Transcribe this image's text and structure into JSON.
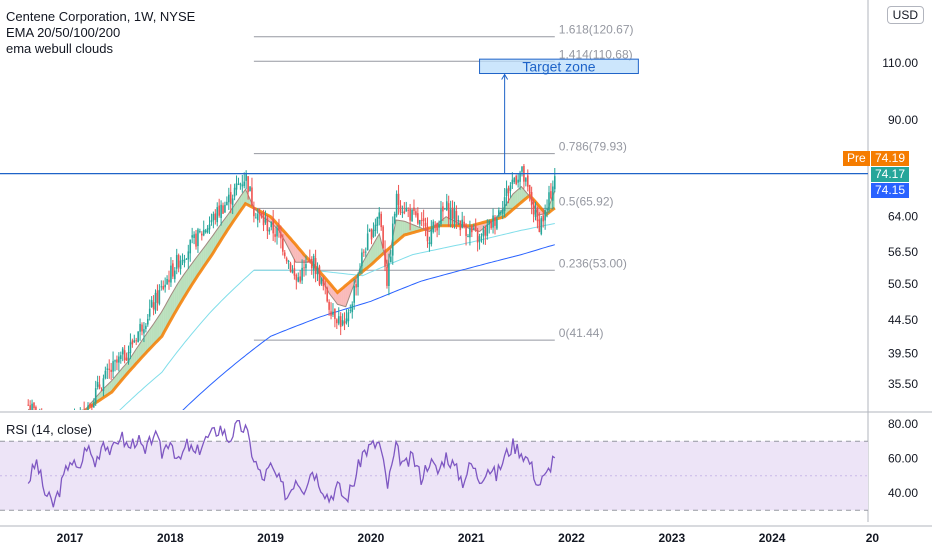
{
  "header": {
    "title": "Centene Corporation, 1W, NYSE",
    "indicator_1": "EMA 20/50/100/200",
    "indicator_2": "ema webull clouds",
    "currency": "USD"
  },
  "rsi_panel": {
    "title": "RSI (14, close)"
  },
  "price_tags": [
    {
      "label": "Pre",
      "value": "74.19",
      "color": "#f57c00"
    },
    {
      "label": "",
      "value": "74.17",
      "color": "#26a69a"
    },
    {
      "label": "",
      "value": "74.15",
      "color": "#2962ff"
    }
  ],
  "chart_data": [
    {
      "type": "candlestick",
      "title": "Centene Corporation, 1W, NYSE",
      "y_scale": "log",
      "x_ticks": [
        "2017",
        "2018",
        "2019",
        "2020",
        "2021",
        "2022",
        "2023",
        "2024",
        "20"
      ],
      "y_ticks": [
        "110.00",
        "90.00",
        "64.00",
        "56.50",
        "50.50",
        "44.50",
        "39.50",
        "35.50"
      ],
      "y_tick_values": [
        110,
        90,
        64,
        56.5,
        50.5,
        44.5,
        39.5,
        35.5
      ],
      "ylim": [
        30.5,
        130
      ],
      "price_path": [
        [
          "2016-08",
          33.0
        ],
        [
          "2016-11",
          29.0
        ],
        [
          "2017-02",
          31.0
        ],
        [
          "2017-05",
          36.0
        ],
        [
          "2017-08",
          40.0
        ],
        [
          "2017-11",
          47.0
        ],
        [
          "2018-02",
          55.0
        ],
        [
          "2018-05",
          61.0
        ],
        [
          "2018-08",
          68.0
        ],
        [
          "2018-10",
          74.0
        ],
        [
          "2018-11",
          66.0
        ],
        [
          "2018-12",
          63.0
        ],
        [
          "2019-02",
          60.0
        ],
        [
          "2019-04",
          51.0
        ],
        [
          "2019-06",
          55.0
        ],
        [
          "2019-08",
          47.0
        ],
        [
          "2019-10",
          43.0
        ],
        [
          "2019-12",
          56.0
        ],
        [
          "2020-02",
          65.0
        ],
        [
          "2020-03",
          50.0
        ],
        [
          "2020-04",
          68.0
        ],
        [
          "2020-06",
          64.0
        ],
        [
          "2020-08",
          60.0
        ],
        [
          "2020-10",
          66.0
        ],
        [
          "2020-12",
          62.0
        ],
        [
          "2021-02",
          59.0
        ],
        [
          "2021-04",
          64.0
        ],
        [
          "2021-06",
          73.0
        ],
        [
          "2021-07",
          75.0
        ],
        [
          "2021-09",
          62.0
        ],
        [
          "2021-10",
          65.0
        ],
        [
          "2021-11",
          74.17
        ]
      ],
      "ema_20_50": [
        [
          "2016-08",
          32.0
        ],
        [
          "2016-12",
          30.5
        ],
        [
          "2017-06",
          34.5
        ],
        [
          "2017-12",
          42.0
        ],
        [
          "2018-06",
          56.0
        ],
        [
          "2018-10",
          67.0
        ],
        [
          "2019-01",
          64.0
        ],
        [
          "2019-05",
          56.0
        ],
        [
          "2019-09",
          49.0
        ],
        [
          "2020-01",
          54.0
        ],
        [
          "2020-05",
          60.0
        ],
        [
          "2020-09",
          62.0
        ],
        [
          "2021-01",
          62.0
        ],
        [
          "2021-05",
          64.0
        ],
        [
          "2021-08",
          69.0
        ],
        [
          "2021-10",
          64.5
        ],
        [
          "2021-11",
          66.0
        ]
      ],
      "ema_100": [
        [
          "2016-08",
          29.0
        ],
        [
          "2017-06",
          31.5
        ],
        [
          "2017-12",
          37.0
        ],
        [
          "2018-06",
          46.0
        ],
        [
          "2018-11",
          53.0
        ],
        [
          "2019-06",
          53.0
        ],
        [
          "2019-12",
          52.0
        ],
        [
          "2020-06",
          56.0
        ],
        [
          "2021-01",
          58.5
        ],
        [
          "2021-07",
          61.0
        ],
        [
          "2021-11",
          62.5
        ]
      ],
      "ema_200": [
        [
          "2017-06",
          26.0
        ],
        [
          "2018-01",
          31.0
        ],
        [
          "2018-07",
          36.5
        ],
        [
          "2019-01",
          42.0
        ],
        [
          "2019-07",
          45.0
        ],
        [
          "2020-01",
          47.5
        ],
        [
          "2020-07",
          51.0
        ],
        [
          "2021-01",
          53.5
        ],
        [
          "2021-07",
          56.0
        ],
        [
          "2021-11",
          58.0
        ]
      ],
      "fib_levels": [
        {
          "label": "1.618(120.67)",
          "value": 120.67
        },
        {
          "label": "1.414(110.68)",
          "value": 110.68
        },
        {
          "label": "0.786(79.93)",
          "value": 79.93
        },
        {
          "label": "0.5(65.92)",
          "value": 65.92
        },
        {
          "label": "0.236(53.00)",
          "value": 53.0
        },
        {
          "label": "0(41.44)",
          "value": 41.44
        }
      ],
      "fib_start": "2018-11",
      "fib_end": "2021-11",
      "resistance_line": 74.5,
      "target_zone": {
        "label": "Target zone",
        "low": 106.0,
        "high": 111.5,
        "start": "2021-02",
        "end": "2022-09"
      },
      "target_arrow": {
        "date": "2021-05",
        "from": 74.5,
        "to": 106.0
      }
    },
    {
      "type": "line",
      "title": "RSI (14, close)",
      "y_ticks": [
        "80.00",
        "60.00",
        "40.00"
      ],
      "y_tick_values": [
        80,
        60,
        40
      ],
      "ylim": [
        27,
        84
      ],
      "band": [
        30,
        70
      ],
      "series": [
        {
          "values": [
            [
              "2016-08",
              47
            ],
            [
              "2016-09",
              58
            ],
            [
              "2016-10",
              40
            ],
            [
              "2016-11",
              33
            ],
            [
              "2016-12",
              45
            ],
            [
              "2017-01",
              60
            ],
            [
              "2017-02",
              52
            ],
            [
              "2017-03",
              68
            ],
            [
              "2017-04",
              57
            ],
            [
              "2017-05",
              71
            ],
            [
              "2017-06",
              63
            ],
            [
              "2017-07",
              74
            ],
            [
              "2017-08",
              66
            ],
            [
              "2017-09",
              72
            ],
            [
              "2017-10",
              62
            ],
            [
              "2017-11",
              75
            ],
            [
              "2017-12",
              63
            ],
            [
              "2018-01",
              72
            ],
            [
              "2018-02",
              57
            ],
            [
              "2018-03",
              68
            ],
            [
              "2018-04",
              62
            ],
            [
              "2018-05",
              70
            ],
            [
              "2018-06",
              74
            ],
            [
              "2018-07",
              78
            ],
            [
              "2018-08",
              71
            ],
            [
              "2018-09",
              79
            ],
            [
              "2018-10",
              77
            ],
            [
              "2018-11",
              60
            ],
            [
              "2018-12",
              48
            ],
            [
              "2019-01",
              55
            ],
            [
              "2019-02",
              47
            ],
            [
              "2019-03",
              38
            ],
            [
              "2019-04",
              49
            ],
            [
              "2019-05",
              43
            ],
            [
              "2019-06",
              54
            ],
            [
              "2019-07",
              45
            ],
            [
              "2019-08",
              37
            ],
            [
              "2019-09",
              44
            ],
            [
              "2019-10",
              36
            ],
            [
              "2019-11",
              47
            ],
            [
              "2019-12",
              63
            ],
            [
              "2020-01",
              67
            ],
            [
              "2020-02",
              69
            ],
            [
              "2020-03",
              44
            ],
            [
              "2020-04",
              66
            ],
            [
              "2020-05",
              55
            ],
            [
              "2020-06",
              61
            ],
            [
              "2020-07",
              49
            ],
            [
              "2020-08",
              59
            ],
            [
              "2020-09",
              52
            ],
            [
              "2020-10",
              62
            ],
            [
              "2020-11",
              55
            ],
            [
              "2020-12",
              47
            ],
            [
              "2021-01",
              57
            ],
            [
              "2021-02",
              48
            ],
            [
              "2021-03",
              55
            ],
            [
              "2021-04",
              50
            ],
            [
              "2021-05",
              61
            ],
            [
              "2021-06",
              68
            ],
            [
              "2021-07",
              64
            ],
            [
              "2021-08",
              58
            ],
            [
              "2021-09",
              45
            ],
            [
              "2021-10",
              50
            ],
            [
              "2021-11",
              63
            ]
          ]
        }
      ]
    }
  ],
  "colors": {
    "candle_up": "#26a69a",
    "candle_down": "#ef5350",
    "ema_fast": "#f57c00",
    "ema_100": "#80deea",
    "ema_200": "#2962ff",
    "fib_line": "#9598a1",
    "rsi_line": "#7e57c2",
    "rsi_band": "#ede4f7",
    "target_zone": "#bbdefb",
    "target_text": "#1e63c8",
    "resistance": "#1e63c8"
  }
}
